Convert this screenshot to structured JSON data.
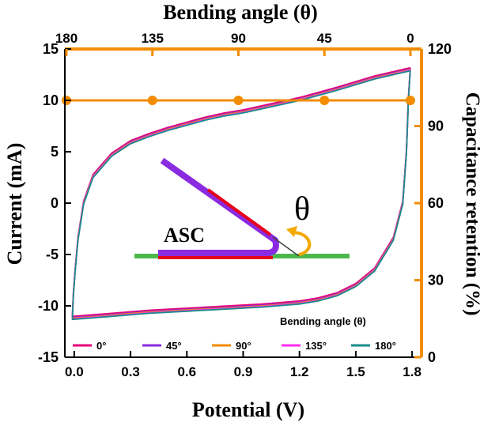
{
  "chart_data": {
    "type": "line",
    "xlabel": "Potential (V)",
    "ylabel": "Current (mA)",
    "top_xlabel": "Bending angle (θ)",
    "right_ylabel": "Capacitance retention (%)",
    "x_ticks": [
      "0.0",
      "0.3",
      "0.6",
      "0.9",
      "1.2",
      "1.5",
      "1.8"
    ],
    "x_tick_values": [
      0.0,
      0.3,
      0.6,
      0.9,
      1.2,
      1.5,
      1.8
    ],
    "y_ticks": [
      "-15",
      "-10",
      "-5",
      "0",
      "5",
      "10",
      "15"
    ],
    "y_tick_values": [
      -15,
      -10,
      -5,
      0,
      5,
      10,
      15
    ],
    "top_ticks": [
      "180",
      "135",
      "90",
      "45",
      "0"
    ],
    "top_tick_values": [
      180,
      135,
      90,
      45,
      0
    ],
    "right_ticks": [
      "0",
      "30",
      "60",
      "90",
      "120"
    ],
    "right_tick_values": [
      0,
      30,
      60,
      90,
      120
    ],
    "xlim": [
      -0.05,
      1.85
    ],
    "ylim": [
      -15,
      15
    ],
    "top_xlim": [
      180,
      0
    ],
    "right_ylim": [
      0,
      120
    ],
    "cv_upper": [
      [
        1.79,
        13.0
      ],
      [
        1.6,
        12.2
      ],
      [
        1.4,
        11.1
      ],
      [
        1.2,
        10.1
      ],
      [
        1.0,
        9.3
      ],
      [
        0.9,
        8.9
      ],
      [
        0.8,
        8.6
      ],
      [
        0.7,
        8.2
      ],
      [
        0.6,
        7.7
      ],
      [
        0.5,
        7.2
      ],
      [
        0.4,
        6.6
      ],
      [
        0.3,
        5.9
      ],
      [
        0.2,
        4.7
      ],
      [
        0.1,
        2.6
      ],
      [
        0.05,
        0.0
      ],
      [
        0.02,
        -3.5
      ],
      [
        0.005,
        -6.5
      ],
      [
        -0.005,
        -9.0
      ],
      [
        -0.01,
        -11.2
      ]
    ],
    "cv_lower": [
      [
        -0.01,
        -11.2
      ],
      [
        0.2,
        -10.9
      ],
      [
        0.4,
        -10.6
      ],
      [
        0.6,
        -10.4
      ],
      [
        0.8,
        -10.2
      ],
      [
        1.0,
        -10.0
      ],
      [
        1.2,
        -9.7
      ],
      [
        1.3,
        -9.4
      ],
      [
        1.4,
        -8.9
      ],
      [
        1.5,
        -8.0
      ],
      [
        1.6,
        -6.5
      ],
      [
        1.7,
        -3.5
      ],
      [
        1.75,
        0.0
      ],
      [
        1.77,
        5.0
      ],
      [
        1.78,
        10.0
      ],
      [
        1.79,
        13.0
      ]
    ],
    "series": [
      {
        "name": "0°",
        "color": "#e8007a",
        "dx": 0.0,
        "dy": 0.18
      },
      {
        "name": "45°",
        "color": "#8a2be2",
        "dx": 0.0,
        "dy": 0.06
      },
      {
        "name": "90°",
        "color": "#f28c00",
        "dx": 0.0,
        "dy": 0.0
      },
      {
        "name": "135°",
        "color": "#ff2cf0",
        "dx": 0.0,
        "dy": -0.06
      },
      {
        "name": "180°",
        "color": "#1a8c8c",
        "dx": 0.0,
        "dy": -0.12
      }
    ],
    "retention_series": {
      "color": "#f28c00",
      "angles": [
        180,
        135,
        90,
        45,
        0
      ],
      "values": [
        100,
        100,
        100,
        100,
        100
      ]
    },
    "legend_title": "Bending angle (θ)",
    "legend_placement": "bottom"
  },
  "inset": {
    "device_label": "ASC",
    "angle_symbol": "θ",
    "colors": {
      "arm": "#8a2be2",
      "electrode": "#e8001c",
      "substrate": "#4cb84c",
      "arrow": "#f2a900"
    }
  },
  "colors": {
    "axis_top_right": "#f28c00",
    "axis_left_bottom": "#000000"
  }
}
